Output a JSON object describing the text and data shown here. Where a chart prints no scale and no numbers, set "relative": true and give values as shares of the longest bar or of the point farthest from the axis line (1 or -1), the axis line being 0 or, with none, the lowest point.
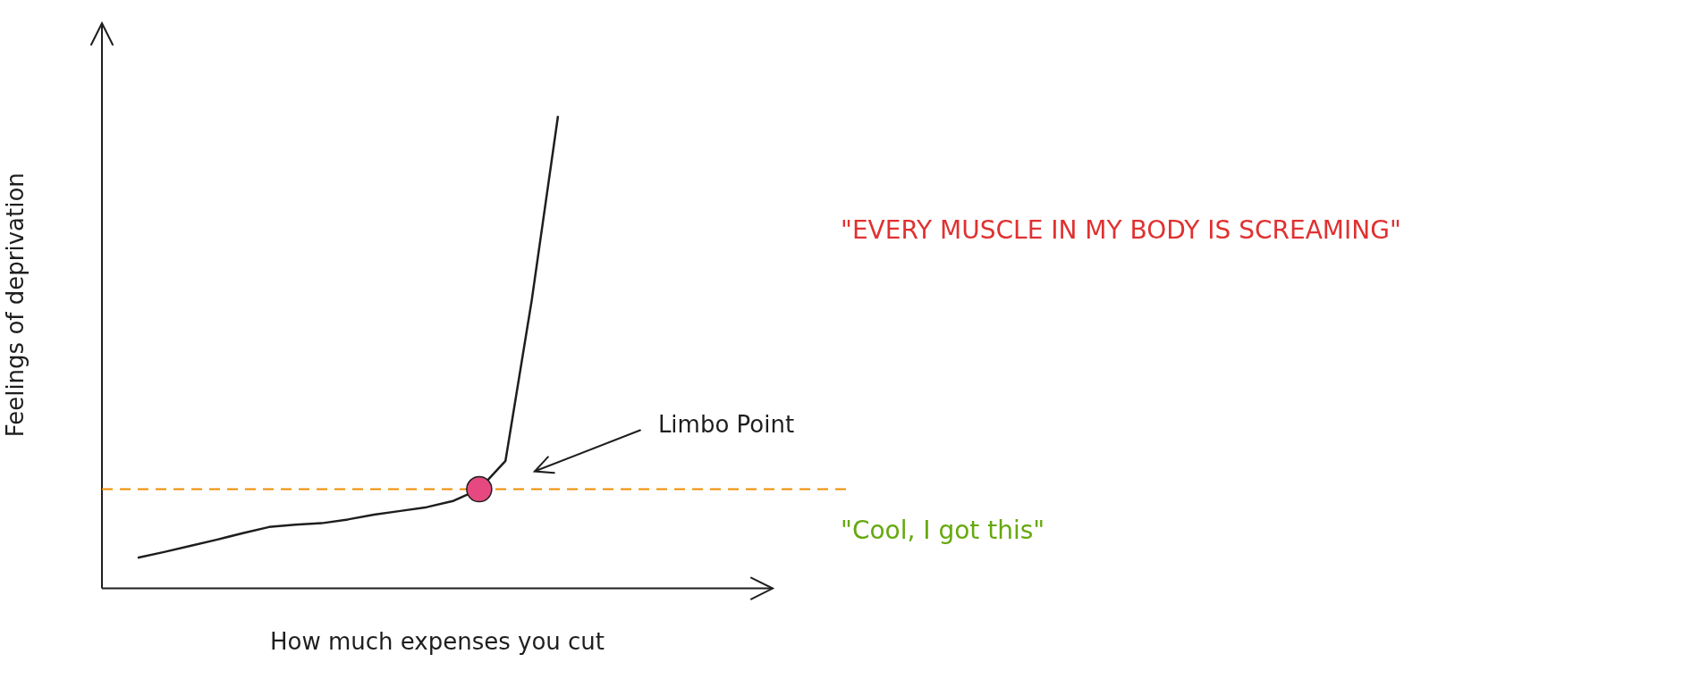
{
  "chart_data": {
    "type": "line",
    "relative": true,
    "xlabel": "How much expenses you cut",
    "ylabel": "Feelings of deprivation",
    "grid": false,
    "legend": false,
    "marker": "none",
    "line_style": "solid",
    "categories": [
      null,
      null,
      null,
      null,
      null,
      null,
      null,
      null,
      null,
      null,
      null,
      null,
      null,
      null,
      null,
      null,
      null
    ],
    "series": [
      {
        "color": "#1e1e1e",
        "values": [
          0.065,
          0.077,
          0.09,
          0.103,
          0.117,
          0.13,
          0.135,
          0.138,
          0.146,
          0.156,
          0.164,
          0.172,
          0.185,
          0.21,
          0.27,
          0.61,
          1
        ]
      }
    ],
    "ref_lines": [
      {
        "axis": "y",
        "value": 0.21,
        "color": "#f08c00",
        "line_style": "dashed"
      }
    ],
    "annotations": [
      "Limbo Point",
      "\"EVERY MUSCLE IN MY BODY IS SCREAMING\"",
      "\"Cool, I got this\""
    ]
  }
}
